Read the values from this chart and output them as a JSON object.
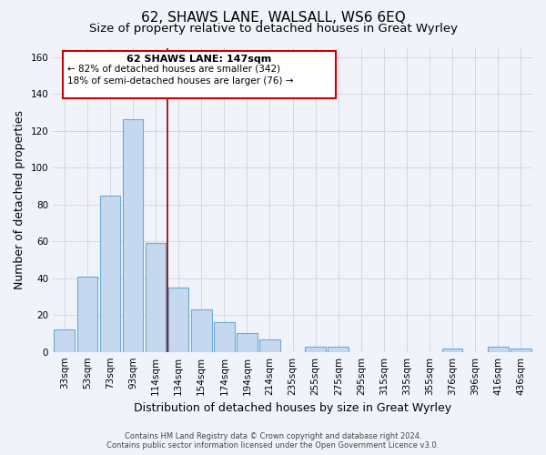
{
  "title": "62, SHAWS LANE, WALSALL, WS6 6EQ",
  "subtitle": "Size of property relative to detached houses in Great Wyrley",
  "xlabel": "Distribution of detached houses by size in Great Wyrley",
  "ylabel": "Number of detached properties",
  "bar_color": "#c5d8f0",
  "bar_edge_color": "#6aaad4",
  "background_color": "#f0f4fa",
  "grid_color": "#d0d8e8",
  "categories": [
    "33sqm",
    "53sqm",
    "73sqm",
    "93sqm",
    "114sqm",
    "134sqm",
    "154sqm",
    "174sqm",
    "194sqm",
    "214sqm",
    "235sqm",
    "255sqm",
    "275sqm",
    "295sqm",
    "315sqm",
    "335sqm",
    "355sqm",
    "376sqm",
    "396sqm",
    "416sqm",
    "436sqm"
  ],
  "values": [
    12,
    41,
    85,
    126,
    59,
    35,
    23,
    16,
    10,
    7,
    0,
    3,
    3,
    0,
    0,
    0,
    0,
    2,
    0,
    3,
    2
  ],
  "ylim": [
    0,
    165
  ],
  "yticks": [
    0,
    20,
    40,
    60,
    80,
    100,
    120,
    140,
    160
  ],
  "annotation_title": "62 SHAWS LANE: 147sqm",
  "annotation_line1": "← 82% of detached houses are smaller (342)",
  "annotation_line2": "18% of semi-detached houses are larger (76) →",
  "red_line_x": 4.5,
  "footer_line1": "Contains HM Land Registry data © Crown copyright and database right 2024.",
  "footer_line2": "Contains public sector information licensed under the Open Government Licence v3.0.",
  "title_fontsize": 11,
  "subtitle_fontsize": 9.5,
  "axis_label_fontsize": 9,
  "tick_fontsize": 7.5
}
